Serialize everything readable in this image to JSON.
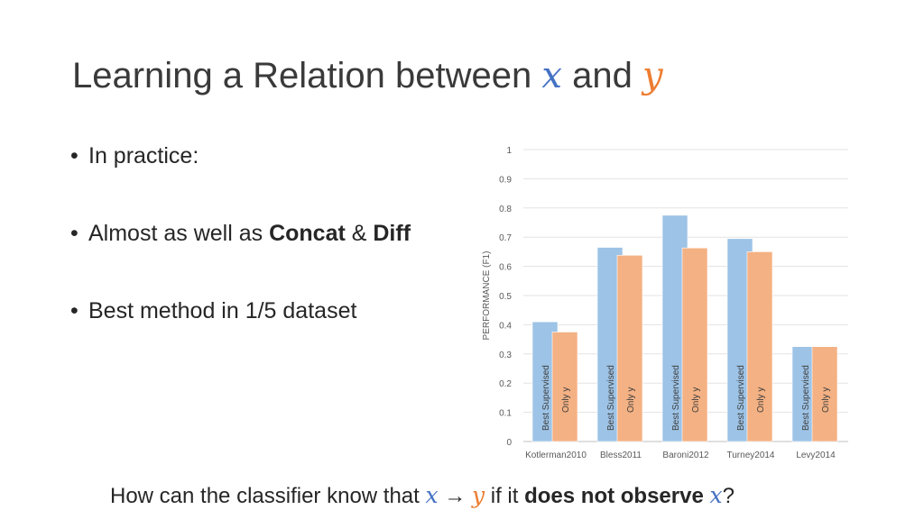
{
  "slide": {
    "title_text": "Learning a Relation between",
    "title_var_x": "x",
    "title_and": "and",
    "title_var_y": "y",
    "bullets": [
      {
        "text": "In practice:"
      },
      {
        "pre": "Almost as well as ",
        "bold1": "Concat",
        "mid": " & ",
        "bold2": "Diff"
      },
      {
        "text": "Best method in 1/5 dataset"
      }
    ],
    "bullet_char": "•",
    "question": {
      "pre": "How can the classifier know that ",
      "var_x": "x",
      "arrow": "→",
      "var_y": "y",
      "mid": " if it ",
      "bold": "does not observe",
      "var_x2": "x",
      "end": "?"
    }
  },
  "chart_data": {
    "type": "bar",
    "title": "",
    "xlabel": "",
    "ylabel": "PERFORMANCE (F1)",
    "ylim": [
      0,
      1
    ],
    "yticks": [
      "0",
      "0.1",
      "0.2",
      "0.3",
      "0.4",
      "0.5",
      "0.6",
      "0.7",
      "0.8",
      "0.9",
      "1"
    ],
    "grid": true,
    "legend": "none",
    "categories": [
      "Kotlerman2010",
      "Bless2011",
      "Baroni2012",
      "Turney2014",
      "Levy2014"
    ],
    "series": [
      {
        "name": "Best Supervised",
        "color": "#9dc3e6",
        "values": [
          0.41,
          0.665,
          0.775,
          0.695,
          0.325
        ]
      },
      {
        "name": "Only y",
        "color": "#f4b183",
        "values": [
          0.375,
          0.638,
          0.663,
          0.65,
          0.325
        ]
      }
    ],
    "bar_labels": [
      "Best Supervised",
      "Only y"
    ]
  }
}
